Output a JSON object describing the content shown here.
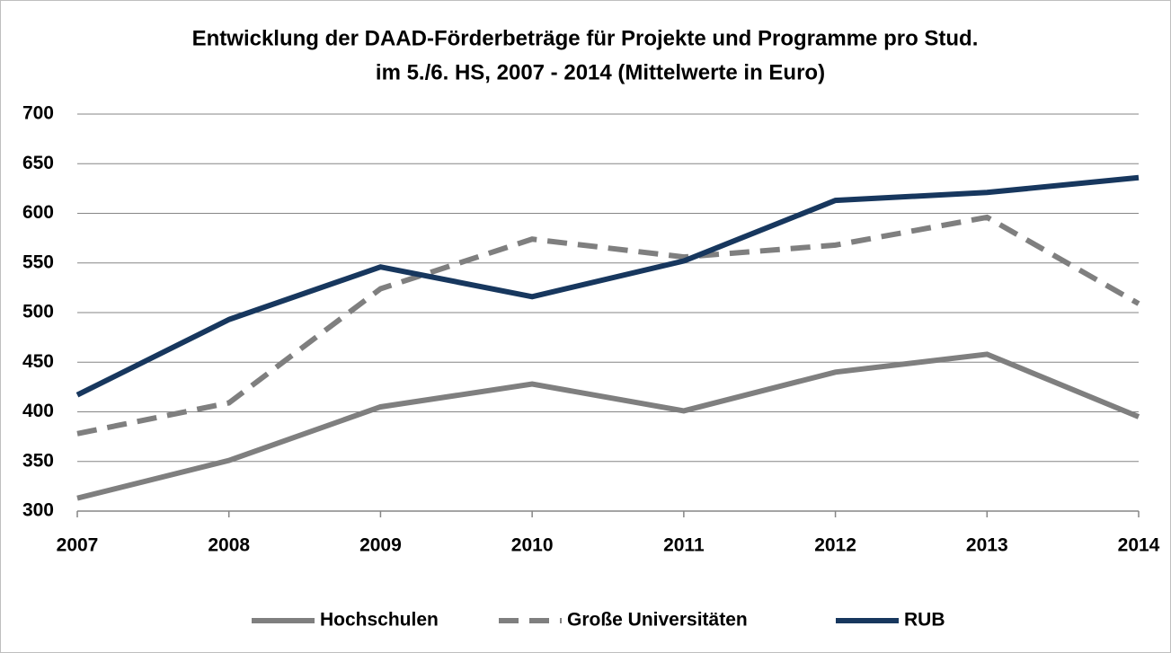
{
  "chart_data": {
    "type": "line",
    "title": [
      "Entwicklung der DAAD-Förderbeträge für Projekte und Programme pro Stud.",
      "im 5./6. HS, 2007 - 2014 (Mittelwerte in Euro)"
    ],
    "x": [
      2007,
      2008,
      2009,
      2010,
      2011,
      2012,
      2013,
      2014
    ],
    "xlim": [
      2007,
      2014
    ],
    "xticks": [
      2007,
      2008,
      2009,
      2010,
      2011,
      2012,
      2013,
      2014
    ],
    "ylim": [
      300,
      700
    ],
    "yticks": [
      300,
      350,
      400,
      450,
      500,
      550,
      600,
      650,
      700
    ],
    "grid": true,
    "legend": "bottom",
    "series": [
      {
        "name": "Hochschulen",
        "color": "#7f7f7f",
        "line_style": "solid",
        "values": [
          313,
          351,
          405,
          428,
          401,
          440,
          458,
          395
        ]
      },
      {
        "name": "Große Universitäten",
        "color": "#7f7f7f",
        "line_style": "dashed",
        "values": [
          378,
          409,
          524,
          574,
          556,
          568,
          596,
          509
        ]
      },
      {
        "name": "RUB",
        "color": "#17375e",
        "line_style": "solid",
        "values": [
          417,
          493,
          546,
          516,
          552,
          613,
          621,
          636
        ]
      }
    ]
  }
}
